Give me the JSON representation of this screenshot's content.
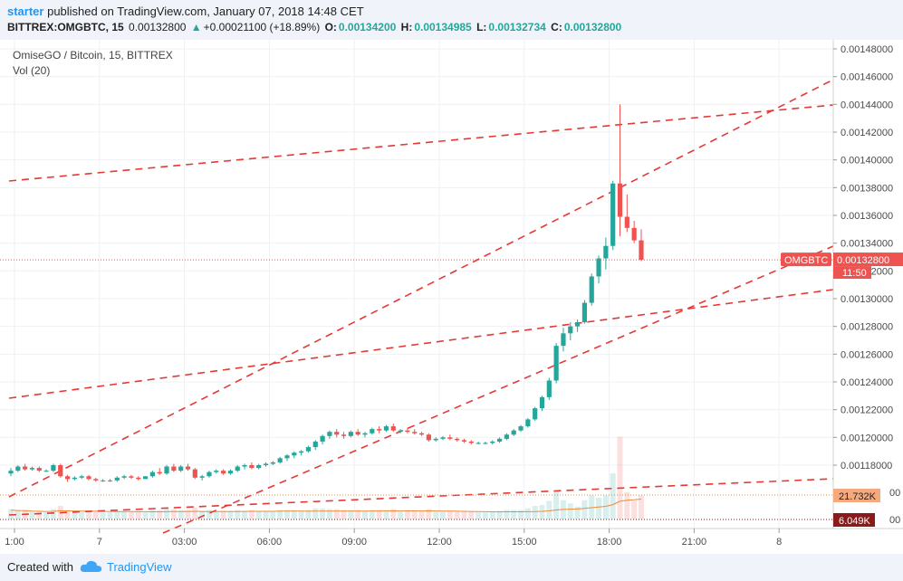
{
  "header": {
    "username": "starter",
    "published_text": "published on TradingView.com, January 07, 2018 14:48 CET",
    "symbol": "BITTREX:OMGBTC, 15",
    "last_price": "0.00132800",
    "change": "+0.00021100 (+18.89%)",
    "open_label": "O:",
    "open": "0.00134200",
    "high_label": "H:",
    "high": "0.00134985",
    "low_label": "L:",
    "low": "0.00132734",
    "close_label": "C:",
    "close": "0.00132800"
  },
  "legend": {
    "title": "OmiseGO / Bitcoin, 15, BITTREX",
    "volume": "Vol (20)"
  },
  "price_axis": {
    "ticks": [
      "0.00148000",
      "0.00146000",
      "0.00144000",
      "0.00142000",
      "0.00140000",
      "0.00138000",
      "0.00136000",
      "0.00134000",
      "0.00132000",
      "0.00130000",
      "0.00128000",
      "0.00126000",
      "0.00124000",
      "0.00122000",
      "0.00120000",
      "0.00118000"
    ],
    "partial_ticks": [
      "00",
      "00"
    ],
    "symbol_label": "OMGBTC",
    "current_price_label": "0.00132800",
    "countdown": "11:50",
    "volume_ma_label": "21.732K",
    "volume_label": "6.049K"
  },
  "time_axis": [
    "1:00",
    "7",
    "03:00",
    "06:00",
    "09:00",
    "12:00",
    "15:00",
    "18:00",
    "21:00",
    "8"
  ],
  "footer": {
    "created_with": "Created with",
    "brand": "TradingView"
  },
  "colors": {
    "up": "#26a69a",
    "down": "#ef5350",
    "trendline": "#e53935",
    "vol_ma": "#ef8a3a",
    "accent": "#2196f3",
    "volume_badge": "#f5a97f",
    "volume_badge_dark": "#8b1a1a"
  },
  "chart_data": {
    "type": "candlestick",
    "title": "OmiseGO / Bitcoin, 15, BITTREX",
    "interval": "15",
    "ylim": [
      0.001168,
      0.001482
    ],
    "x_range": [
      "1:00",
      "8"
    ],
    "grid": true,
    "candles": [
      {
        "o": 0.001174,
        "h": 0.001178,
        "l": 0.001172,
        "c": 0.001176
      },
      {
        "o": 0.001176,
        "h": 0.00118,
        "l": 0.001175,
        "c": 0.001179
      },
      {
        "o": 0.001179,
        "h": 0.001181,
        "l": 0.001176,
        "c": 0.001177
      },
      {
        "o": 0.001177,
        "h": 0.001179,
        "l": 0.001176,
        "c": 0.001178
      },
      {
        "o": 0.001178,
        "h": 0.001179,
        "l": 0.001175,
        "c": 0.001176
      },
      {
        "o": 0.001176,
        "h": 0.001177,
        "l": 0.001175,
        "c": 0.001176
      },
      {
        "o": 0.001176,
        "h": 0.001181,
        "l": 0.001175,
        "c": 0.00118
      },
      {
        "o": 0.00118,
        "h": 0.001181,
        "l": 0.001171,
        "c": 0.001172
      },
      {
        "o": 0.001172,
        "h": 0.001173,
        "l": 0.001168,
        "c": 0.00117
      },
      {
        "o": 0.00117,
        "h": 0.001172,
        "l": 0.001169,
        "c": 0.001171
      },
      {
        "o": 0.001171,
        "h": 0.001173,
        "l": 0.00117,
        "c": 0.001172
      },
      {
        "o": 0.001172,
        "h": 0.001173,
        "l": 0.001169,
        "c": 0.00117
      },
      {
        "o": 0.00117,
        "h": 0.001171,
        "l": 0.001168,
        "c": 0.001169
      },
      {
        "o": 0.001169,
        "h": 0.00117,
        "l": 0.001168,
        "c": 0.001169
      },
      {
        "o": 0.001169,
        "h": 0.00117,
        "l": 0.001168,
        "c": 0.001169
      },
      {
        "o": 0.001169,
        "h": 0.001172,
        "l": 0.001168,
        "c": 0.001171
      },
      {
        "o": 0.001171,
        "h": 0.001173,
        "l": 0.00117,
        "c": 0.001172
      },
      {
        "o": 0.001172,
        "h": 0.001173,
        "l": 0.00117,
        "c": 0.001171
      },
      {
        "o": 0.001171,
        "h": 0.001172,
        "l": 0.001169,
        "c": 0.00117
      },
      {
        "o": 0.00117,
        "h": 0.001172,
        "l": 0.00117,
        "c": 0.001172
      },
      {
        "o": 0.001172,
        "h": 0.001176,
        "l": 0.001171,
        "c": 0.001175
      },
      {
        "o": 0.001175,
        "h": 0.001178,
        "l": 0.001173,
        "c": 0.001174
      },
      {
        "o": 0.001174,
        "h": 0.00118,
        "l": 0.001173,
        "c": 0.001179
      },
      {
        "o": 0.001179,
        "h": 0.001181,
        "l": 0.001175,
        "c": 0.001176
      },
      {
        "o": 0.001176,
        "h": 0.00118,
        "l": 0.001175,
        "c": 0.001179
      },
      {
        "o": 0.001179,
        "h": 0.001181,
        "l": 0.001176,
        "c": 0.001177
      },
      {
        "o": 0.001177,
        "h": 0.001178,
        "l": 0.00117,
        "c": 0.001171
      },
      {
        "o": 0.001171,
        "h": 0.001173,
        "l": 0.001169,
        "c": 0.001172
      },
      {
        "o": 0.001172,
        "h": 0.001176,
        "l": 0.001171,
        "c": 0.001175
      },
      {
        "o": 0.001175,
        "h": 0.001177,
        "l": 0.001174,
        "c": 0.001176
      },
      {
        "o": 0.001176,
        "h": 0.001177,
        "l": 0.001173,
        "c": 0.001174
      },
      {
        "o": 0.001174,
        "h": 0.001177,
        "l": 0.001173,
        "c": 0.001176
      },
      {
        "o": 0.001176,
        "h": 0.00118,
        "l": 0.001175,
        "c": 0.001179
      },
      {
        "o": 0.001179,
        "h": 0.001181,
        "l": 0.001177,
        "c": 0.00118
      },
      {
        "o": 0.00118,
        "h": 0.001182,
        "l": 0.001177,
        "c": 0.001178
      },
      {
        "o": 0.001178,
        "h": 0.001181,
        "l": 0.001177,
        "c": 0.00118
      },
      {
        "o": 0.00118,
        "h": 0.001182,
        "l": 0.001179,
        "c": 0.001181
      },
      {
        "o": 0.001181,
        "h": 0.001183,
        "l": 0.00118,
        "c": 0.001182
      },
      {
        "o": 0.001182,
        "h": 0.001186,
        "l": 0.001181,
        "c": 0.001185
      },
      {
        "o": 0.001185,
        "h": 0.001188,
        "l": 0.001183,
        "c": 0.001187
      },
      {
        "o": 0.001187,
        "h": 0.00119,
        "l": 0.001185,
        "c": 0.001189
      },
      {
        "o": 0.001189,
        "h": 0.001191,
        "l": 0.001187,
        "c": 0.00119
      },
      {
        "o": 0.00119,
        "h": 0.001194,
        "l": 0.001189,
        "c": 0.001193
      },
      {
        "o": 0.001193,
        "h": 0.001198,
        "l": 0.001191,
        "c": 0.001197
      },
      {
        "o": 0.001197,
        "h": 0.001202,
        "l": 0.001195,
        "c": 0.001201
      },
      {
        "o": 0.001201,
        "h": 0.001205,
        "l": 0.001199,
        "c": 0.001204
      },
      {
        "o": 0.001204,
        "h": 0.001206,
        "l": 0.0012,
        "c": 0.001202
      },
      {
        "o": 0.001202,
        "h": 0.001204,
        "l": 0.001199,
        "c": 0.001201
      },
      {
        "o": 0.001201,
        "h": 0.001205,
        "l": 0.0012,
        "c": 0.001204
      },
      {
        "o": 0.001204,
        "h": 0.001206,
        "l": 0.001201,
        "c": 0.001202
      },
      {
        "o": 0.001202,
        "h": 0.001204,
        "l": 0.0012,
        "c": 0.001203
      },
      {
        "o": 0.001203,
        "h": 0.001207,
        "l": 0.001202,
        "c": 0.001206
      },
      {
        "o": 0.001206,
        "h": 0.001208,
        "l": 0.001203,
        "c": 0.001205
      },
      {
        "o": 0.001205,
        "h": 0.001209,
        "l": 0.001204,
        "c": 0.001208
      },
      {
        "o": 0.001208,
        "h": 0.00121,
        "l": 0.001204,
        "c": 0.001205
      },
      {
        "o": 0.001205,
        "h": 0.001206,
        "l": 0.001203,
        "c": 0.001205
      },
      {
        "o": 0.001205,
        "h": 0.001207,
        "l": 0.001203,
        "c": 0.001204
      },
      {
        "o": 0.001204,
        "h": 0.001206,
        "l": 0.001202,
        "c": 0.001203
      },
      {
        "o": 0.001203,
        "h": 0.001204,
        "l": 0.001201,
        "c": 0.001202
      },
      {
        "o": 0.001202,
        "h": 0.001203,
        "l": 0.001197,
        "c": 0.001198
      },
      {
        "o": 0.001198,
        "h": 0.0012,
        "l": 0.001197,
        "c": 0.001199
      },
      {
        "o": 0.001199,
        "h": 0.001201,
        "l": 0.001198,
        "c": 0.0012
      },
      {
        "o": 0.0012,
        "h": 0.001202,
        "l": 0.001198,
        "c": 0.001199
      },
      {
        "o": 0.001199,
        "h": 0.0012,
        "l": 0.001197,
        "c": 0.001198
      },
      {
        "o": 0.001198,
        "h": 0.001199,
        "l": 0.001196,
        "c": 0.001197
      },
      {
        "o": 0.001197,
        "h": 0.001198,
        "l": 0.001195,
        "c": 0.001196
      },
      {
        "o": 0.001196,
        "h": 0.001197,
        "l": 0.001195,
        "c": 0.001196
      },
      {
        "o": 0.001196,
        "h": 0.001197,
        "l": 0.001195,
        "c": 0.001196
      },
      {
        "o": 0.001196,
        "h": 0.001198,
        "l": 0.001195,
        "c": 0.001197
      },
      {
        "o": 0.001197,
        "h": 0.0012,
        "l": 0.001196,
        "c": 0.001199
      },
      {
        "o": 0.001199,
        "h": 0.001203,
        "l": 0.001198,
        "c": 0.001202
      },
      {
        "o": 0.001202,
        "h": 0.001206,
        "l": 0.001201,
        "c": 0.001205
      },
      {
        "o": 0.001205,
        "h": 0.001209,
        "l": 0.001204,
        "c": 0.001208
      },
      {
        "o": 0.001208,
        "h": 0.001214,
        "l": 0.001207,
        "c": 0.001213
      },
      {
        "o": 0.001213,
        "h": 0.001222,
        "l": 0.001212,
        "c": 0.001221
      },
      {
        "o": 0.001221,
        "h": 0.00123,
        "l": 0.001219,
        "c": 0.001229
      },
      {
        "o": 0.001229,
        "h": 0.001243,
        "l": 0.001227,
        "c": 0.001241
      },
      {
        "o": 0.001241,
        "h": 0.001268,
        "l": 0.001239,
        "c": 0.001266
      },
      {
        "o": 0.001266,
        "h": 0.001279,
        "l": 0.001262,
        "c": 0.001275
      },
      {
        "o": 0.001275,
        "h": 0.001283,
        "l": 0.00127,
        "c": 0.00128
      },
      {
        "o": 0.00128,
        "h": 0.001285,
        "l": 0.001276,
        "c": 0.001283
      },
      {
        "o": 0.001283,
        "h": 0.001299,
        "l": 0.001282,
        "c": 0.001297
      },
      {
        "o": 0.001297,
        "h": 0.001318,
        "l": 0.001295,
        "c": 0.001316
      },
      {
        "o": 0.001316,
        "h": 0.001331,
        "l": 0.001311,
        "c": 0.001329
      },
      {
        "o": 0.001329,
        "h": 0.001344,
        "l": 0.001321,
        "c": 0.001338
      },
      {
        "o": 0.001338,
        "h": 0.001385,
        "l": 0.001335,
        "c": 0.001383
      },
      {
        "o": 0.001383,
        "h": 0.00144,
        "l": 0.001345,
        "c": 0.001359
      },
      {
        "o": 0.001359,
        "h": 0.001375,
        "l": 0.001348,
        "c": 0.001351
      },
      {
        "o": 0.001351,
        "h": 0.001356,
        "l": 0.00134,
        "c": 0.001342
      },
      {
        "o": 0.001342,
        "h": 0.00135,
        "l": 0.001327,
        "c": 0.001328
      }
    ]
  }
}
